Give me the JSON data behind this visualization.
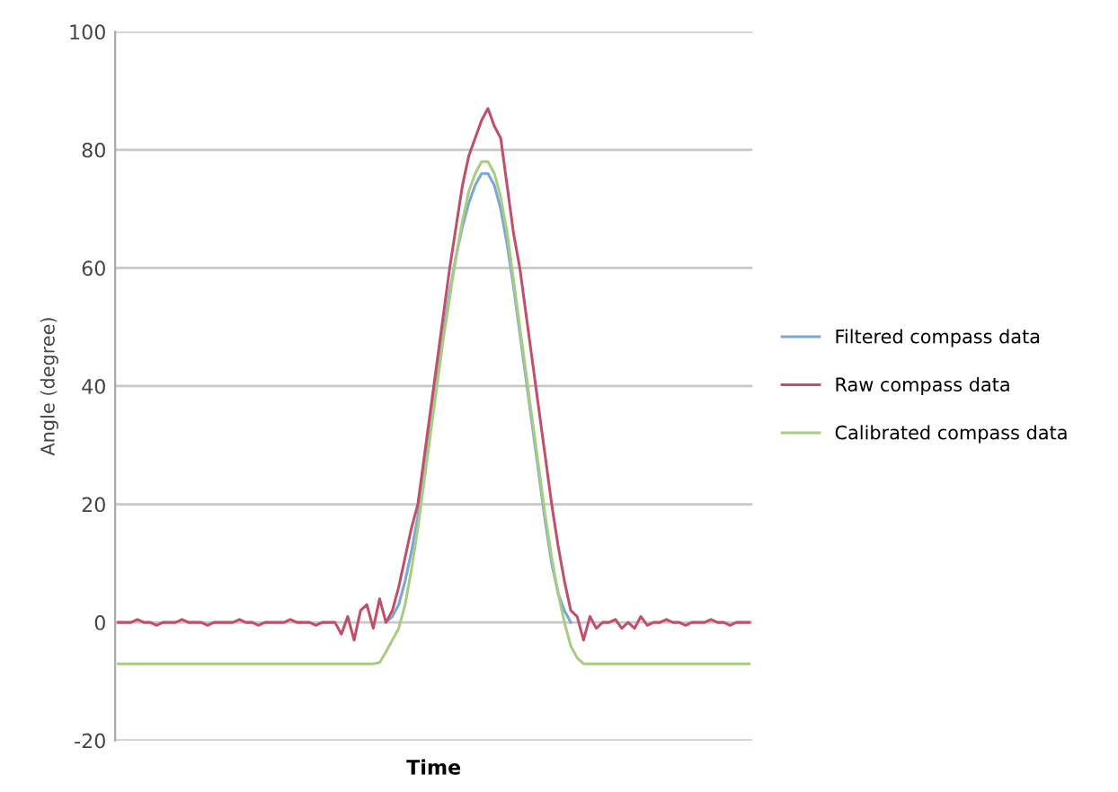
{
  "chart_data": {
    "type": "line",
    "xlabel": "Time",
    "ylabel": "Angle (degree)",
    "categories": [
      null,
      null,
      null,
      null,
      null,
      null,
      null,
      null,
      null,
      null,
      null,
      null,
      null,
      null,
      null,
      null,
      null,
      null,
      null,
      null,
      null,
      null,
      null,
      null,
      null,
      null,
      null,
      null,
      null,
      null,
      null,
      null,
      null,
      null,
      null,
      null,
      null,
      null,
      null,
      null,
      null,
      null,
      null,
      null,
      null,
      null,
      null,
      null,
      null,
      null,
      null,
      null,
      null,
      null,
      null,
      null,
      null,
      null,
      null,
      null,
      null,
      null,
      null,
      null,
      null,
      null,
      null,
      null,
      null,
      null,
      null,
      null,
      null,
      null,
      null,
      null,
      null,
      null,
      null,
      null,
      null,
      null,
      null,
      null,
      null,
      null,
      null,
      null,
      null,
      null,
      null,
      null,
      null,
      null,
      null,
      null,
      null,
      null,
      null,
      null
    ],
    "series": [
      {
        "name": "Filtered compass data",
        "color": "#7ba7d8",
        "values": [
          null,
          null,
          null,
          null,
          null,
          null,
          null,
          null,
          null,
          null,
          null,
          null,
          null,
          null,
          null,
          null,
          null,
          null,
          null,
          null,
          null,
          null,
          null,
          null,
          null,
          null,
          null,
          null,
          null,
          null,
          null,
          null,
          null,
          null,
          null,
          null,
          null,
          null,
          null,
          null,
          null,
          null,
          0,
          1,
          3,
          7,
          12,
          18,
          25,
          33,
          41,
          49,
          56,
          62,
          67,
          71,
          74,
          76,
          76,
          74,
          70,
          64,
          57,
          49,
          41,
          33,
          25,
          17,
          10,
          5,
          2,
          0,
          null,
          null,
          null,
          null,
          null,
          null,
          null,
          null,
          null,
          null,
          null,
          null,
          null,
          null,
          null,
          null,
          null,
          null,
          null,
          null,
          null,
          null,
          null,
          null,
          null,
          null,
          null,
          null
        ]
      },
      {
        "name": "Raw compass data",
        "color": "#c0506a",
        "values": [
          0,
          0,
          0,
          0.5,
          0,
          0,
          -0.5,
          0,
          0,
          0,
          0.5,
          0,
          0,
          0,
          -0.5,
          0,
          0,
          0,
          0,
          0.5,
          0,
          0,
          -0.5,
          0,
          0,
          0,
          0,
          0.5,
          0,
          0,
          0,
          -0.5,
          0,
          0,
          0,
          -2,
          1,
          -3,
          2,
          3,
          -1,
          4,
          0,
          2,
          6,
          11,
          16,
          20,
          28,
          36,
          44,
          52,
          60,
          67,
          74,
          79,
          82,
          85,
          87,
          84,
          82,
          74,
          66,
          60,
          52,
          44,
          36,
          28,
          20,
          13,
          7,
          2,
          1,
          -3,
          1,
          -1,
          0,
          0,
          0.5,
          -1,
          0,
          -1,
          1,
          -0.5,
          0,
          0,
          0.5,
          0,
          0,
          -0.5,
          0,
          0,
          0,
          0.5,
          0,
          0,
          -0.5,
          0,
          0,
          0
        ]
      },
      {
        "name": "Calibrated compass data",
        "color": "#a8cc80",
        "values": [
          -7,
          -7,
          -7,
          -7,
          -7,
          -7,
          -7,
          -7,
          -7,
          -7,
          -7,
          -7,
          -7,
          -7,
          -7,
          -7,
          -7,
          -7,
          -7,
          -7,
          -7,
          -7,
          -7,
          -7,
          -7,
          -7,
          -7,
          -7,
          -7,
          -7,
          -7,
          -7,
          -7,
          -7,
          -7,
          -7,
          -7,
          -7,
          -7,
          -7,
          -7,
          -6.8,
          -5,
          -3,
          -1,
          3,
          9,
          16,
          24,
          32,
          40,
          48,
          55,
          62,
          68,
          73,
          76,
          78,
          78,
          76,
          72,
          66,
          58,
          50,
          42,
          34,
          26,
          18,
          11,
          5,
          0,
          -4,
          -6,
          -7,
          -7,
          -7,
          -7,
          -7,
          -7,
          -7,
          -7,
          -7,
          -7,
          -7,
          -7,
          -7,
          -7,
          -7,
          -7,
          -7,
          -7,
          -7,
          -7,
          -7,
          -7,
          -7,
          -7,
          -7,
          -7,
          -7
        ]
      }
    ],
    "ylim": [
      -20,
      100
    ],
    "yticks": [
      -20,
      0,
      20,
      40,
      60,
      80,
      100
    ],
    "grid": "y",
    "legend": "right",
    "marker": "none",
    "line_style": "solid"
  }
}
